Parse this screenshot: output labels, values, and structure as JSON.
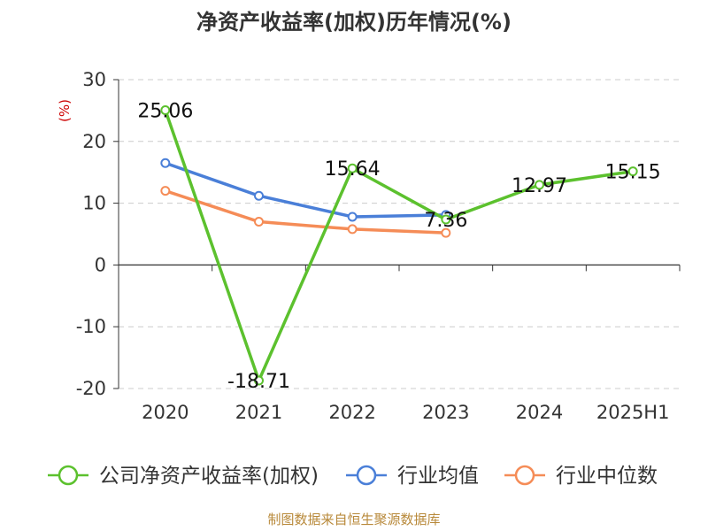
{
  "chart_data": {
    "type": "line",
    "title": "净资产收益率(加权)历年情况(%)",
    "ylabel": "(%)",
    "xlabel": "",
    "categories": [
      "2020",
      "2021",
      "2022",
      "2023",
      "2024",
      "2025H1"
    ],
    "ylim": [
      -20,
      30
    ],
    "yticks": [
      30,
      20,
      10,
      0,
      -10,
      -20
    ],
    "grid": true,
    "legend_position": "bottom",
    "series": [
      {
        "name": "公司净资产收益率(加权)",
        "color": "#5cc12e",
        "values": [
          25.06,
          -18.71,
          15.64,
          7.36,
          12.97,
          15.15
        ],
        "labels": [
          "25.06",
          "-18.71",
          "15.64",
          "7.36",
          "12.97",
          "15.15"
        ]
      },
      {
        "name": "行业均值",
        "color": "#4a7fd8",
        "values": [
          16.5,
          11.2,
          7.8,
          8.1,
          null,
          null
        ]
      },
      {
        "name": "行业中位数",
        "color": "#f58c57",
        "values": [
          12.0,
          7.0,
          5.8,
          5.2,
          null,
          null
        ]
      }
    ]
  },
  "source": "制图数据来自恒生聚源数据库"
}
